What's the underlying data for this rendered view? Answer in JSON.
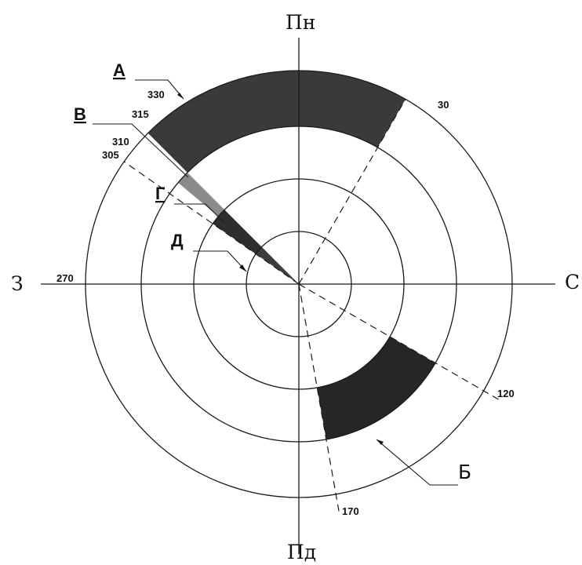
{
  "directions": {
    "north": "Пн",
    "east": "С",
    "south": "Пд",
    "west": "З"
  },
  "degree_labels": {
    "d330": "330",
    "d315": "315",
    "d310": "310",
    "d305": "305",
    "d30": "30",
    "d270": "270",
    "d120": "120",
    "d170": "170"
  },
  "zones": {
    "a": {
      "letter": "А",
      "from_deg": 315,
      "to_deg": 30,
      "inner_ring": 3,
      "outer_ring": 4,
      "color": "#3a3a3a"
    },
    "b": {
      "letter": "Б",
      "from_deg": 120,
      "to_deg": 170,
      "inner_ring": 2,
      "outer_ring": 3,
      "color": "#262626"
    },
    "v": {
      "letter": "В",
      "from_deg": 310,
      "to_deg": 315,
      "inner_ring": 2,
      "outer_ring": 3,
      "color": "#8a8a8a"
    },
    "g": {
      "letter": "Г",
      "from_deg": 305,
      "to_deg": 315,
      "inner_ring": 1,
      "outer_ring": 2,
      "color": "#2e2e2e"
    },
    "d": {
      "letter": "Д",
      "from_deg": 305,
      "to_deg": 315,
      "inner_ring": 0,
      "outer_ring": 1,
      "color": "#3c3c3c"
    }
  },
  "ray_bearings": [
    30,
    120,
    170,
    305
  ],
  "ring_count": 4
}
